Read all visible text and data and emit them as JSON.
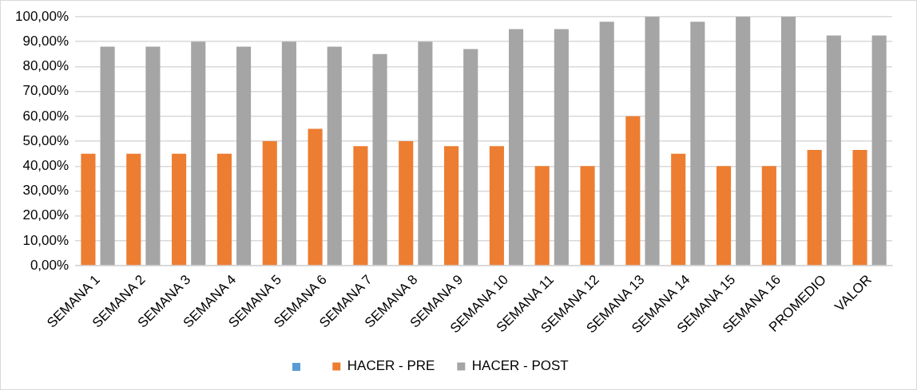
{
  "chart_data": {
    "type": "bar",
    "categories": [
      "SEMANA 1",
      "SEMANA 2",
      "SEMANA 3",
      "SEMANA 4",
      "SEMANA 5",
      "SEMANA 6",
      "SEMANA 7",
      "SEMANA 8",
      "SEMANA 9",
      "SEMANA 10",
      "SEMANA 11",
      "SEMANA 12",
      "SEMANA 13",
      "SEMANA 14",
      "SEMANA 15",
      "SEMANA 16",
      "PROMEDIO",
      "VALOR"
    ],
    "series": [
      {
        "name": "HACER - PRE",
        "color": "#ed7d31",
        "values": [
          45,
          45,
          45,
          45,
          50,
          55,
          48,
          50,
          48,
          48,
          40,
          40,
          60,
          45,
          40,
          40,
          46.5,
          46.5
        ]
      },
      {
        "name": "HACER - POST",
        "color": "#a5a5a5",
        "values": [
          88,
          88,
          90,
          88,
          90,
          88,
          85,
          90,
          87,
          95,
          95,
          98,
          100,
          98,
          100,
          100,
          92.5,
          92.5
        ]
      }
    ],
    "ylim": [
      0,
      100
    ],
    "yticks": [
      {
        "value": 0,
        "label": "0,00%"
      },
      {
        "value": 10,
        "label": "10,00%"
      },
      {
        "value": 20,
        "label": "20,00%"
      },
      {
        "value": 30,
        "label": "30,00%"
      },
      {
        "value": 40,
        "label": "40,00%"
      },
      {
        "value": 50,
        "label": "50,00%"
      },
      {
        "value": 60,
        "label": "60,00%"
      },
      {
        "value": 70,
        "label": "70,00%"
      },
      {
        "value": 80,
        "label": "80,00%"
      },
      {
        "value": 90,
        "label": "90,00%"
      },
      {
        "value": 100,
        "label": "100,00%"
      }
    ],
    "grid": "y",
    "legend": "bottom"
  }
}
